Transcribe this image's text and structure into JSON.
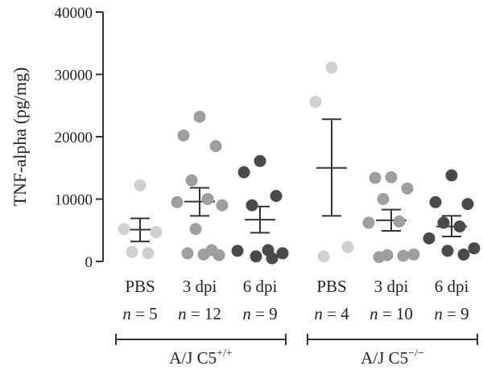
{
  "chart_data": {
    "type": "scatter",
    "ylabel": "TNF-alpha (pg/mg)",
    "ylim": [
      0,
      40000
    ],
    "yticks": [
      "0",
      "10000",
      "20000",
      "30000",
      "40000"
    ],
    "grid": false,
    "categories": [
      {
        "label": "PBS",
        "n_text": "= 5",
        "color": "#d0d0d0",
        "mean": 5100,
        "err_low": 3200,
        "err_high": 6900,
        "values": [
          12200,
          5200,
          4700,
          1500,
          1300
        ]
      },
      {
        "label": "3 dpi",
        "n_text": "= 12",
        "color": "#9e9e9e",
        "mean": 9600,
        "err_low": 7300,
        "err_high": 11800,
        "values": [
          23200,
          20200,
          18500,
          13000,
          10000,
          9500,
          9000,
          5200,
          1800,
          1300,
          1100,
          1000
        ]
      },
      {
        "label": "6 dpi",
        "n_text": "= 9",
        "color": "#4a4a4a",
        "mean": 6700,
        "err_low": 4600,
        "err_high": 8800,
        "values": [
          16100,
          14300,
          10500,
          9000,
          1800,
          1700,
          1300,
          800,
          500
        ]
      },
      {
        "label": "PBS",
        "n_text": "= 4",
        "color": "#d0d0d0",
        "mean": 15000,
        "err_low": 7300,
        "err_high": 22800,
        "values": [
          31100,
          25600,
          2300,
          800
        ]
      },
      {
        "label": "3 dpi",
        "n_text": "= 10",
        "color": "#9e9e9e",
        "mean": 6600,
        "err_low": 4900,
        "err_high": 8300,
        "values": [
          13500,
          13400,
          11700,
          10000,
          6400,
          6200,
          1100,
          1000,
          900,
          700
        ]
      },
      {
        "label": "6 dpi",
        "n_text": "= 9",
        "color": "#4a4a4a",
        "mean": 5600,
        "err_low": 4000,
        "err_high": 7300,
        "values": [
          13800,
          9500,
          9200,
          6200,
          5600,
          3700,
          2100,
          1700,
          1100
        ]
      }
    ],
    "groups": [
      {
        "label": "A/J C5",
        "superscript": "+/+",
        "from": 0,
        "to": 2
      },
      {
        "label": "A/J C5",
        "superscript": "−/−",
        "from": 3,
        "to": 5
      }
    ]
  }
}
